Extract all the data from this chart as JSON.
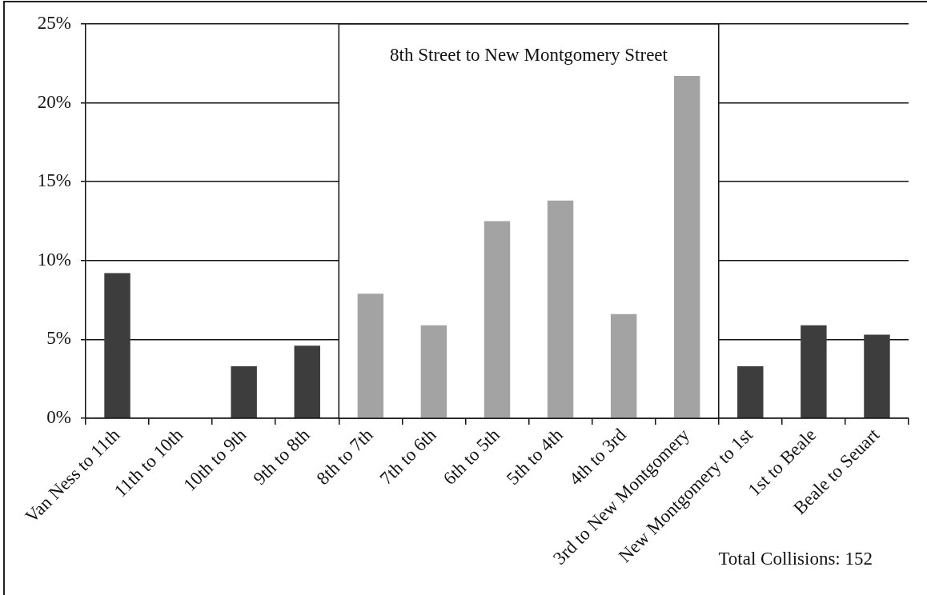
{
  "chart_data": {
    "type": "bar",
    "categories": [
      "Van Ness to 11th",
      "11th to 10th",
      "10th to 9th",
      "9th to 8th",
      "8th to 7th",
      "7th to 6th",
      "6th to 5th",
      "5th to 4th",
      "4th to 3rd",
      "3rd to New Montgomery",
      "New Montgomery to 1st",
      "1st to Beale",
      "Beale to Seuart"
    ],
    "values": [
      9.2,
      0,
      3.3,
      4.6,
      7.9,
      5.9,
      12.5,
      13.8,
      6.6,
      21.7,
      3.3,
      5.9,
      5.3
    ],
    "colors": [
      "#3d3d3d",
      "#3d3d3d",
      "#3d3d3d",
      "#3d3d3d",
      "#a3a3a3",
      "#a3a3a3",
      "#a3a3a3",
      "#a3a3a3",
      "#a3a3a3",
      "#a3a3a3",
      "#3d3d3d",
      "#3d3d3d",
      "#3d3d3d"
    ],
    "ylim": [
      0,
      25
    ],
    "yticks": [
      {
        "value": 0,
        "label": "0%"
      },
      {
        "value": 5,
        "label": "5%"
      },
      {
        "value": 10,
        "label": "10%"
      },
      {
        "value": 15,
        "label": "15%"
      },
      {
        "value": 20,
        "label": "20%"
      },
      {
        "value": 25,
        "label": "25%"
      }
    ],
    "grid": "y",
    "bands": [
      {
        "axis": "x",
        "from": "8th to 7th",
        "to": "3rd to New Montgomery",
        "label": "8th Street to New Montgomery Street",
        "color": "#ffffff"
      }
    ],
    "annotations": [
      "Total Collisions: 152"
    ]
  }
}
